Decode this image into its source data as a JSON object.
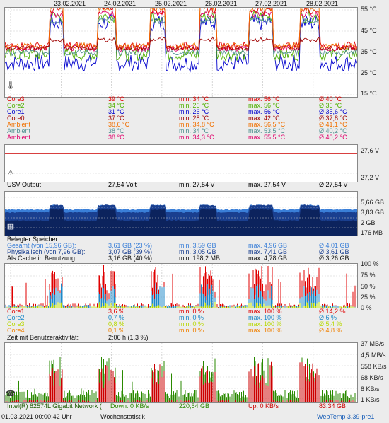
{
  "dates": [
    "23.02.2021",
    "24.02.2021",
    "25.02.2021",
    "26.02.2021",
    "27.02.2021",
    "28.02.2021"
  ],
  "temp_axis": [
    "55 °C",
    "45 °C",
    "35 °C",
    "25 °C",
    "15 °C"
  ],
  "temp_rows": [
    {
      "name": "Core3",
      "cur": "39 °C",
      "min": "min. 34 °C",
      "max": "max. 56 °C",
      "avg": "Ø 40 °C",
      "color": "#e00000"
    },
    {
      "name": "Core2",
      "cur": "34 °C",
      "min": "min. 26 °C",
      "max": "max. 56 °C",
      "avg": "Ø 36 °C",
      "color": "#4fb000"
    },
    {
      "name": "Core1",
      "cur": "31 °C",
      "min": "min. 26 °C",
      "max": "max. 56 °C",
      "avg": "Ø 35,6 °C",
      "color": "#0000cc"
    },
    {
      "name": "Core0",
      "cur": "37 °C",
      "min": "min. 28 °C",
      "max": "max. 42 °C",
      "avg": "Ø 37,8 °C",
      "color": "#a00000"
    },
    {
      "name": "Ambient",
      "cur": "38,6 °C",
      "min": "min. 34,8 °C",
      "max": "max. 56,5 °C",
      "avg": "Ø 41,1 °C",
      "color": "#f07000"
    },
    {
      "name": "Ambient",
      "cur": "38 °C",
      "min": "min. 34 °C",
      "max": "max. 53,5 °C",
      "avg": "Ø 40,2 °C",
      "color": "#509090"
    },
    {
      "name": "Ambient",
      "cur": "38 °C",
      "min": "min. 34,3 °C",
      "max": "max. 55,5 °C",
      "avg": "Ø 40,2 °C",
      "color": "#e0006a"
    }
  ],
  "volt_axis": [
    "27,6 V",
    "27,2 V"
  ],
  "volt_row": {
    "name": "USV Output",
    "cur": "27,54 Volt",
    "min": "min. 27,54 V",
    "max": "max. 27,54 V",
    "avg": "Ø 27,54 V",
    "color": "#cc0000"
  },
  "mem_axis": [
    "5,66 GB",
    "3,83 GB",
    "2 GB",
    "176 MB"
  ],
  "mem_header": "Belegter Speicher:",
  "mem_rows": [
    {
      "name": "Gesamt (von 15,96 GB):",
      "cur": "3,61 GB (23 %)",
      "min": "min. 3,59 GB",
      "max": "max. 4,96 GB",
      "avg": "Ø 4,01 GB",
      "color": "#3a7fd8"
    },
    {
      "name": "Physikalisch (von 7,96 GB):",
      "cur": "3,07 GB (39 %)",
      "min": "min. 3,05 GB",
      "max": "max. 7,41 GB",
      "avg": "Ø 3,61 GB",
      "color": "#1a3f8f"
    },
    {
      "name": "Als Cache in Benutzung:",
      "cur": "3,16 GB (40 %)",
      "min": "min. 198,2 MB",
      "max": "max. 4,78 GB",
      "avg": "Ø 3,26 GB",
      "color": "#111111"
    }
  ],
  "cpu_axis": [
    "100 %",
    "75 %",
    "50 %",
    "25 %",
    "0 %"
  ],
  "cpu_rows": [
    {
      "name": "Core1",
      "cur": "3,6 %",
      "min": "min. 0 %",
      "max": "max. 100 %",
      "avg": "Ø 14,2 %",
      "color": "#e00000"
    },
    {
      "name": "Core2",
      "cur": "0,7 %",
      "min": "min. 0 %",
      "max": "max. 100 %",
      "avg": "Ø 6 %",
      "color": "#1e88c8"
    },
    {
      "name": "Core3",
      "cur": "0,8 %",
      "min": "min. 0 %",
      "max": "max. 100 %",
      "avg": "Ø 5,4 %",
      "color": "#b8d800"
    },
    {
      "name": "Core4",
      "cur": "0,1 %",
      "min": "min. 0 %",
      "max": "max. 100 %",
      "avg": "Ø 4,8 %",
      "color": "#f08000"
    }
  ],
  "activity_label": "Zeit mit Benutzeraktivität:",
  "activity_value": "2:06 h (1,3 %)",
  "net_axis": [
    "37 MB/s",
    "4,5 MB/s",
    "558 KB/s",
    "68 KB/s",
    "8 KB/s",
    "1 KB/s"
  ],
  "net_row": {
    "name": "Intel(R) 82574L Gigabit Network (",
    "down": "Down: 0 KB/s",
    "down_total": "220,54 GB",
    "up": "Up: 0 KB/s",
    "up_total": "83,34 GB",
    "down_color": "#2a8a00",
    "up_color": "#cc0000"
  },
  "status": {
    "datetime": "01.03.2021 00:00:42 Uhr",
    "view": "Wochenstatistik",
    "app": "WebTemp 3.39-pre1"
  },
  "icons": {
    "temp": "thermometer-icon",
    "volt": "warning-triangle-icon",
    "mem": "memory-chip-icon",
    "net": "network-icon"
  }
}
